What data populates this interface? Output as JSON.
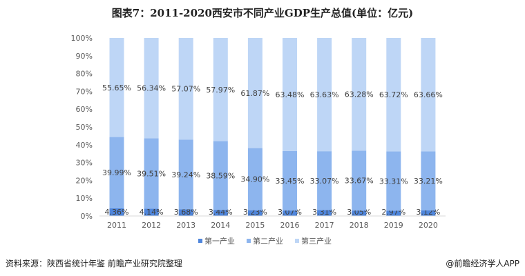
{
  "chart_data": {
    "type": "bar",
    "stacked": "percent",
    "title": "图表7：2011-2020西安市不同产业GDP生产总值(单位：亿元)",
    "categories": [
      "2011",
      "2012",
      "2013",
      "2014",
      "2015",
      "2016",
      "2017",
      "2018",
      "2019",
      "2020"
    ],
    "series": [
      {
        "name": "第一产业",
        "color": "#4f86dc",
        "values": [
          4.36,
          4.14,
          3.68,
          3.44,
          3.23,
          3.07,
          3.31,
          3.05,
          2.97,
          3.12
        ],
        "labels": [
          "4.36%",
          "4.14%",
          "3.68%",
          "3.44%",
          "3.23%",
          "3.07%",
          "3.31%",
          "3.05%",
          "2.97%",
          "3.12%"
        ]
      },
      {
        "name": "第二产业",
        "color": "#8db5ee",
        "values": [
          39.99,
          39.51,
          39.24,
          38.59,
          34.9,
          33.45,
          33.07,
          33.67,
          33.31,
          33.21
        ],
        "labels": [
          "39.99%",
          "39.51%",
          "39.24%",
          "38.59%",
          "34.90%",
          "33.45%",
          "33.07%",
          "33.67%",
          "33.31%",
          "33.21%"
        ]
      },
      {
        "name": "第三产业",
        "color": "#bed6f6",
        "values": [
          55.65,
          56.34,
          57.07,
          57.97,
          61.87,
          63.48,
          63.63,
          63.28,
          63.72,
          63.66
        ],
        "labels": [
          "55.65%",
          "56.34%",
          "57.07%",
          "57.97%",
          "61.87%",
          "63.48%",
          "63.63%",
          "63.28%",
          "63.72%",
          "63.66%"
        ]
      }
    ],
    "yticks": [
      "0%",
      "10%",
      "20%",
      "30%",
      "40%",
      "50%",
      "60%",
      "70%",
      "80%",
      "90%",
      "100%"
    ],
    "ylim": [
      0,
      100
    ],
    "legend": "bottom"
  },
  "footer": {
    "source": "资料来源：陕西省统计年鉴 前瞻产业研究院整理",
    "brand": "@前瞻经济学人APP"
  }
}
